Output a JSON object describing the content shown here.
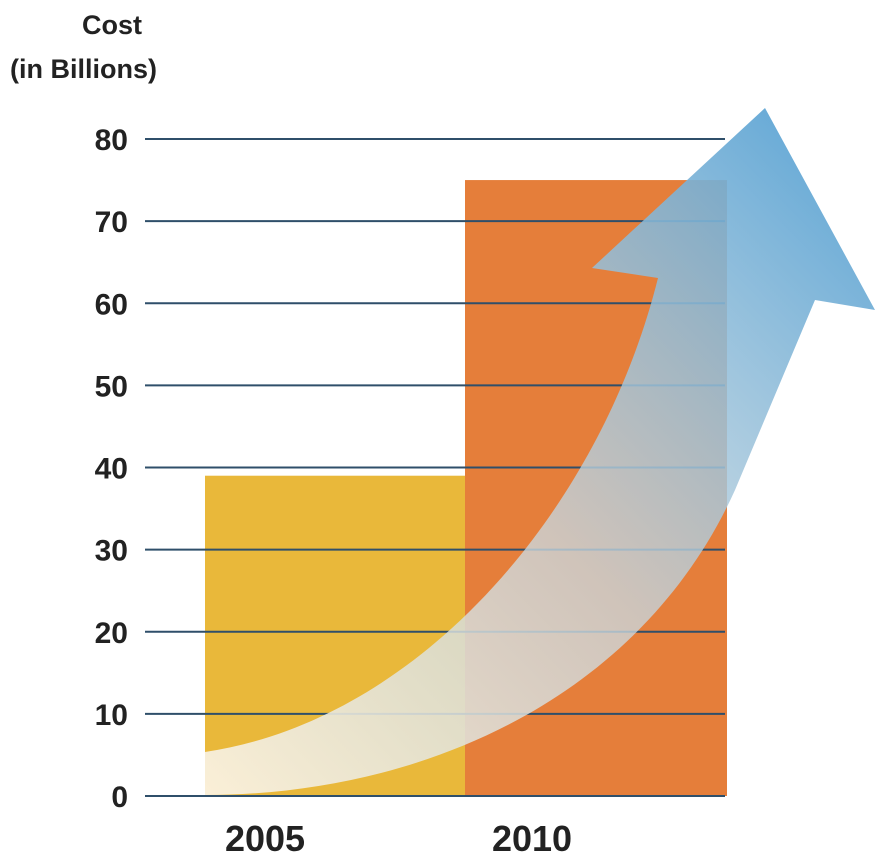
{
  "chart_data": {
    "type": "bar",
    "title": "",
    "xlabel": "",
    "ylabel": [
      "Cost",
      "(in Billions)"
    ],
    "categories": [
      "2005",
      "2010"
    ],
    "values": [
      39,
      75
    ],
    "ylim": [
      0,
      80
    ],
    "yticks": [
      "0",
      "10",
      "20",
      "30",
      "40",
      "50",
      "60",
      "70",
      "80"
    ],
    "grid": true,
    "legend": "none",
    "colors": {
      "bar_2005": "#E9B83A",
      "bar_2010": "#E57E3A",
      "gridline": "#2F4F6A",
      "trend_arrow_start": "#FBF1DC",
      "trend_arrow_end": "#4F9ED3"
    },
    "annotations": [
      "rising-trend-arrow"
    ]
  }
}
